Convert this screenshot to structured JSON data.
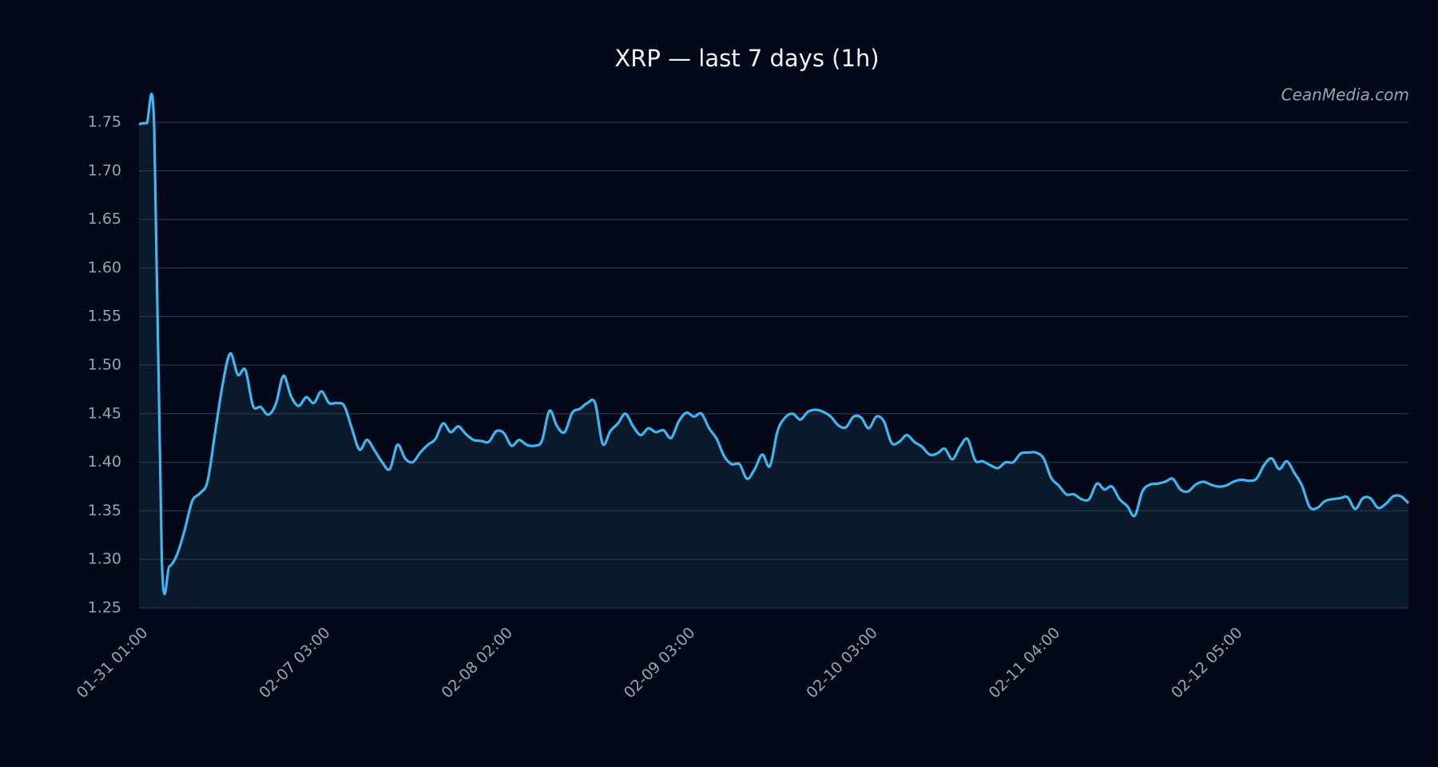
{
  "chart_data": {
    "type": "line",
    "title": "XRP — last 7 days (1h)",
    "watermark": "CeanMedia.com",
    "categories": [
      "01-31 01:00",
      null,
      null,
      null,
      null,
      null,
      null,
      null,
      null,
      null,
      null,
      null,
      null,
      null,
      null,
      null,
      null,
      null,
      null,
      null,
      null,
      null,
      null,
      null,
      "02-07 03:00",
      null,
      null,
      null,
      null,
      null,
      null,
      null,
      null,
      null,
      null,
      null,
      null,
      null,
      null,
      null,
      null,
      null,
      null,
      null,
      null,
      null,
      null,
      null,
      "02-08 02:00",
      null,
      null,
      null,
      null,
      null,
      null,
      null,
      null,
      null,
      null,
      null,
      null,
      null,
      null,
      null,
      null,
      null,
      null,
      null,
      null,
      null,
      null,
      null,
      "02-09 03:00",
      null,
      null,
      null,
      null,
      null,
      null,
      null,
      null,
      null,
      null,
      null,
      null,
      null,
      null,
      null,
      null,
      null,
      null,
      null,
      null,
      null,
      null,
      null,
      "02-10 03:00",
      null,
      null,
      null,
      null,
      null,
      null,
      null,
      null,
      null,
      null,
      null,
      null,
      null,
      null,
      null,
      null,
      null,
      null,
      null,
      null,
      null,
      null,
      null,
      "02-11 04:00",
      null,
      null,
      null,
      null,
      null,
      null,
      null,
      null,
      null,
      null,
      null,
      null,
      null,
      null,
      null,
      null,
      null,
      null,
      null,
      null,
      null,
      null,
      null,
      "02-12 05:00",
      null,
      null,
      null,
      null,
      null,
      null,
      null,
      null,
      null,
      null,
      null,
      null,
      null,
      null,
      null,
      null,
      null,
      null,
      null,
      null,
      null,
      null,
      null
    ],
    "values": [
      1.748,
      1.749,
      1.745,
      1.3,
      1.293,
      1.305,
      1.33,
      1.36,
      1.368,
      1.38,
      1.43,
      1.48,
      1.512,
      1.49,
      1.495,
      1.458,
      1.457,
      1.449,
      1.46,
      1.489,
      1.468,
      1.458,
      1.467,
      1.461,
      1.473,
      1.461,
      1.461,
      1.458,
      1.435,
      1.413,
      1.423,
      1.412,
      1.4,
      1.393,
      1.418,
      1.404,
      1.4,
      1.41,
      1.418,
      1.424,
      1.44,
      1.431,
      1.437,
      1.429,
      1.423,
      1.422,
      1.421,
      1.432,
      1.43,
      1.417,
      1.423,
      1.418,
      1.417,
      1.422,
      1.453,
      1.437,
      1.431,
      1.451,
      1.455,
      1.461,
      1.461,
      1.419,
      1.432,
      1.44,
      1.45,
      1.437,
      1.428,
      1.435,
      1.431,
      1.433,
      1.425,
      1.442,
      1.451,
      1.447,
      1.45,
      1.435,
      1.424,
      1.406,
      1.398,
      1.398,
      1.383,
      1.393,
      1.408,
      1.396,
      1.432,
      1.446,
      1.45,
      1.444,
      1.452,
      1.454,
      1.452,
      1.447,
      1.438,
      1.436,
      1.447,
      1.446,
      1.435,
      1.447,
      1.442,
      1.42,
      1.421,
      1.428,
      1.421,
      1.416,
      1.408,
      1.409,
      1.414,
      1.403,
      1.416,
      1.424,
      1.402,
      1.401,
      1.397,
      1.394,
      1.4,
      1.4,
      1.409,
      1.41,
      1.41,
      1.404,
      1.384,
      1.376,
      1.367,
      1.367,
      1.362,
      1.362,
      1.378,
      1.372,
      1.375,
      1.362,
      1.355,
      1.345,
      1.37,
      1.377,
      1.378,
      1.38,
      1.383,
      1.372,
      1.37,
      1.377,
      1.38,
      1.377,
      1.375,
      1.376,
      1.38,
      1.382,
      1.381,
      1.383,
      1.397,
      1.404,
      1.393,
      1.401,
      1.389,
      1.376,
      1.354,
      1.353,
      1.36,
      1.362,
      1.363,
      1.364,
      1.352,
      1.363,
      1.363,
      1.353,
      1.357,
      1.365,
      1.365,
      1.358
    ],
    "color": "#3fb6f0",
    "fill": "#0a1a2c",
    "ylim": [
      1.25,
      1.75
    ],
    "yticks": [
      {
        "value": 1.25,
        "label": "1.25"
      },
      {
        "value": 1.3,
        "label": "1.30"
      },
      {
        "value": 1.35,
        "label": "1.35"
      },
      {
        "value": 1.4,
        "label": "1.40"
      },
      {
        "value": 1.45,
        "label": "1.45"
      },
      {
        "value": 1.5,
        "label": "1.50"
      },
      {
        "value": 1.55,
        "label": "1.55"
      },
      {
        "value": 1.6,
        "label": "1.60"
      },
      {
        "value": 1.65,
        "label": "1.65"
      },
      {
        "value": 1.7,
        "label": "1.70"
      },
      {
        "value": 1.75,
        "label": "1.75"
      }
    ],
    "grid": true
  }
}
